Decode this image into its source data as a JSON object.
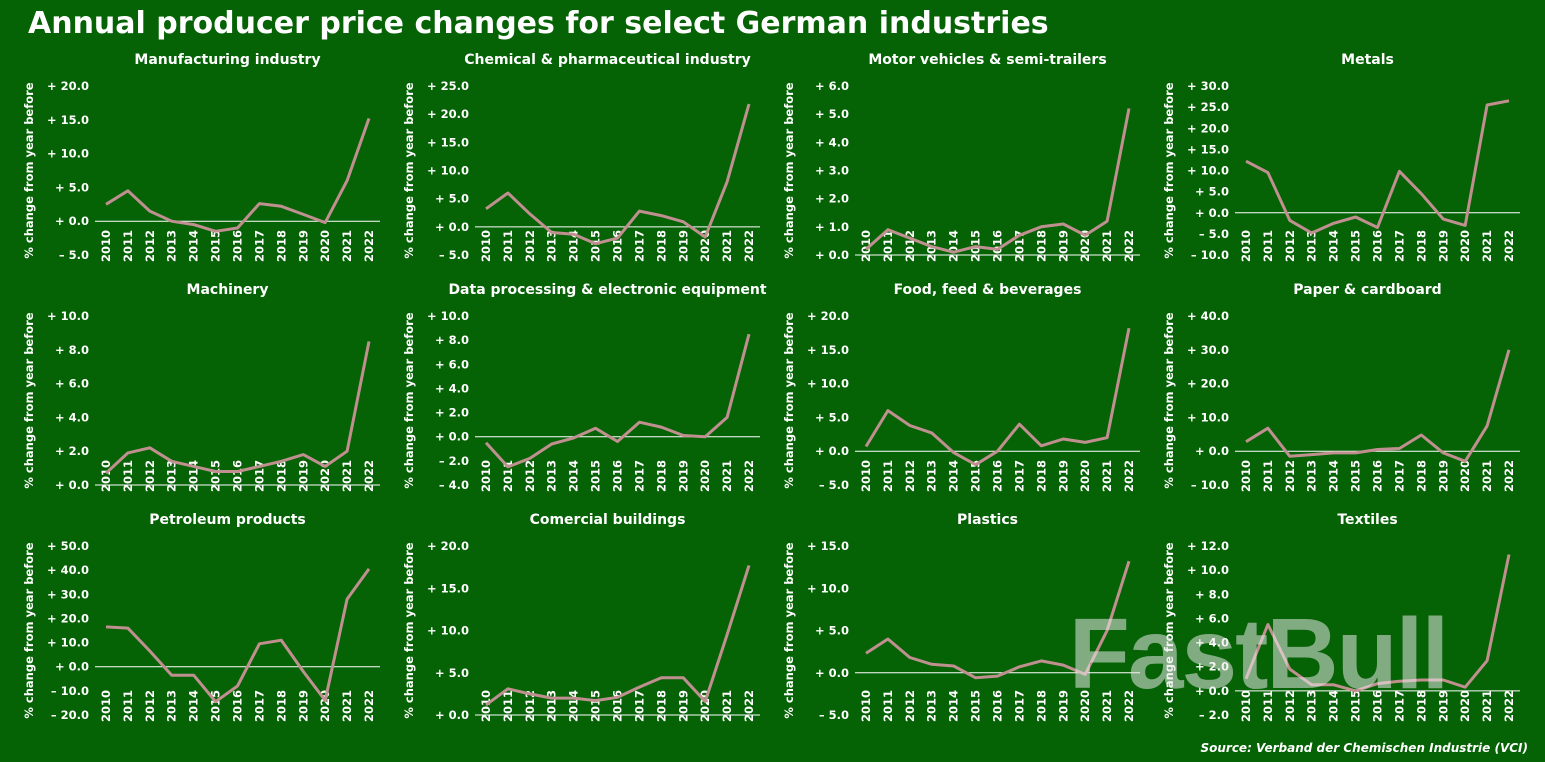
{
  "title": "Annual producer price changes for select German industries",
  "source": "Source: Verband der Chemischen Industrie (VCI)",
  "watermark": "FastBull",
  "chart_data": [
    {
      "type": "line",
      "title": "Manufacturing industry",
      "y_label": "% change from year before",
      "color": "#c09090",
      "categories": [
        "2010",
        "2011",
        "2012",
        "2013",
        "2014",
        "2015",
        "2016",
        "2017",
        "2018",
        "2019",
        "2020",
        "2021",
        "2022"
      ],
      "values": [
        2.5,
        4.5,
        1.5,
        0.0,
        -0.5,
        -1.5,
        -1.0,
        2.6,
        2.2,
        1.0,
        -0.2,
        6.0,
        15.2
      ],
      "ylim": [
        -5,
        20
      ],
      "yticks": [
        {
          "value": -5,
          "label": "– 5.0"
        },
        {
          "value": 0,
          "label": "+ 0.0"
        },
        {
          "value": 5,
          "label": "+ 5.0"
        },
        {
          "value": 10,
          "label": "+ 10.0"
        },
        {
          "value": 15,
          "label": "+ 15.0"
        },
        {
          "value": 20,
          "label": "+ 20.0"
        }
      ]
    },
    {
      "type": "line",
      "title": "Chemical & pharmaceutical industry",
      "y_label": "% change from year before",
      "color": "#c09090",
      "categories": [
        "2010",
        "2011",
        "2012",
        "2013",
        "2014",
        "2015",
        "2016",
        "2017",
        "2018",
        "2019",
        "2020",
        "2021",
        "2022"
      ],
      "values": [
        3.2,
        6.0,
        2.3,
        -1.0,
        -1.3,
        -3.0,
        -2.0,
        2.8,
        2.0,
        0.9,
        -1.8,
        8.0,
        21.8
      ],
      "ylim": [
        -5,
        25
      ],
      "yticks": [
        {
          "value": -5,
          "label": "– 5.0"
        },
        {
          "value": 0,
          "label": "+ 0.0"
        },
        {
          "value": 5,
          "label": "+ 5.0"
        },
        {
          "value": 10,
          "label": "+ 10.0"
        },
        {
          "value": 15,
          "label": "+ 15.0"
        },
        {
          "value": 20,
          "label": "+ 20.0"
        },
        {
          "value": 25,
          "label": "+ 25.0"
        }
      ]
    },
    {
      "type": "line",
      "title": "Motor vehicles & semi-trailers",
      "y_label": "% change from year before",
      "color": "#c09090",
      "categories": [
        "2010",
        "2011",
        "2012",
        "2013",
        "2014",
        "2015",
        "2016",
        "2017",
        "2018",
        "2019",
        "2020",
        "2021",
        "2022"
      ],
      "values": [
        0.2,
        0.9,
        0.6,
        0.3,
        0.1,
        0.3,
        0.2,
        0.7,
        1.0,
        1.1,
        0.7,
        1.2,
        5.2
      ],
      "ylim": [
        0,
        6
      ],
      "yticks": [
        {
          "value": 0,
          "label": "+ 0.0"
        },
        {
          "value": 1,
          "label": "+ 1.0"
        },
        {
          "value": 2,
          "label": "+ 2.0"
        },
        {
          "value": 3,
          "label": "+ 3.0"
        },
        {
          "value": 4,
          "label": "+ 4.0"
        },
        {
          "value": 5,
          "label": "+ 5.0"
        },
        {
          "value": 6,
          "label": "+ 6.0"
        }
      ]
    },
    {
      "type": "line",
      "title": "Metals",
      "y_label": "% change from year before",
      "color": "#c09090",
      "categories": [
        "2010",
        "2011",
        "2012",
        "2013",
        "2014",
        "2015",
        "2016",
        "2017",
        "2018",
        "2019",
        "2020",
        "2021",
        "2022"
      ],
      "values": [
        12.2,
        9.5,
        -1.8,
        -4.8,
        -2.5,
        -1.0,
        -3.5,
        9.8,
        4.5,
        -1.5,
        -3.0,
        25.5,
        26.5
      ],
      "ylim": [
        -10,
        30
      ],
      "yticks": [
        {
          "value": -10,
          "label": "– 10.0"
        },
        {
          "value": -5,
          "label": "– 5.0"
        },
        {
          "value": 0,
          "label": "+ 0.0"
        },
        {
          "value": 5,
          "label": "+ 5.0"
        },
        {
          "value": 10,
          "label": "+ 10.0"
        },
        {
          "value": 15,
          "label": "+ 15.0"
        },
        {
          "value": 20,
          "label": "+ 20.0"
        },
        {
          "value": 25,
          "label": "+ 25.0"
        },
        {
          "value": 30,
          "label": "+ 30.0"
        }
      ]
    },
    {
      "type": "line",
      "title": "Machinery",
      "y_label": "% change from year before",
      "color": "#c09090",
      "categories": [
        "2010",
        "2011",
        "2012",
        "2013",
        "2014",
        "2015",
        "2016",
        "2017",
        "2018",
        "2019",
        "2020",
        "2021",
        "2022"
      ],
      "values": [
        0.7,
        1.9,
        2.2,
        1.4,
        1.1,
        0.8,
        0.8,
        1.1,
        1.4,
        1.8,
        1.1,
        2.0,
        8.5
      ],
      "ylim": [
        0,
        10
      ],
      "yticks": [
        {
          "value": 0,
          "label": "+ 0.0"
        },
        {
          "value": 2,
          "label": "+ 2.0"
        },
        {
          "value": 4,
          "label": "+ 4.0"
        },
        {
          "value": 6,
          "label": "+ 6.0"
        },
        {
          "value": 8,
          "label": "+ 8.0"
        },
        {
          "value": 10,
          "label": "+ 10.0"
        }
      ]
    },
    {
      "type": "line",
      "title": "Data processing & electronic equipment",
      "y_label": "% change from year before",
      "color": "#c09090",
      "categories": [
        "2010",
        "2011",
        "2012",
        "2013",
        "2014",
        "2015",
        "2016",
        "2017",
        "2018",
        "2019",
        "2020",
        "2021",
        "2022"
      ],
      "values": [
        -0.5,
        -2.5,
        -1.8,
        -0.6,
        -0.1,
        0.7,
        -0.4,
        1.2,
        0.8,
        0.1,
        0.0,
        1.6,
        8.5
      ],
      "ylim": [
        -4,
        10
      ],
      "yticks": [
        {
          "value": -4,
          "label": "– 4.0"
        },
        {
          "value": -2,
          "label": "– 2.0"
        },
        {
          "value": 0,
          "label": "+ 0.0"
        },
        {
          "value": 2,
          "label": "+ 2.0"
        },
        {
          "value": 4,
          "label": "+ 4.0"
        },
        {
          "value": 6,
          "label": "+ 6.0"
        },
        {
          "value": 8,
          "label": "+ 8.0"
        },
        {
          "value": 10,
          "label": "+ 10.0"
        }
      ]
    },
    {
      "type": "line",
      "title": "Food, feed & beverages",
      "y_label": "% change from year before",
      "color": "#c09090",
      "categories": [
        "2010",
        "2011",
        "2012",
        "2013",
        "2014",
        "2015",
        "2016",
        "2017",
        "2018",
        "2019",
        "2020",
        "2021",
        "2022"
      ],
      "values": [
        0.7,
        6.0,
        3.8,
        2.7,
        -0.2,
        -2.0,
        0.0,
        4.0,
        0.8,
        1.8,
        1.3,
        2.0,
        18.2
      ],
      "ylim": [
        -5,
        20
      ],
      "yticks": [
        {
          "value": -5,
          "label": "– 5.0"
        },
        {
          "value": 0,
          "label": "+ 0.0"
        },
        {
          "value": 5,
          "label": "+ 5.0"
        },
        {
          "value": 10,
          "label": "+ 10.0"
        },
        {
          "value": 15,
          "label": "+ 15.0"
        },
        {
          "value": 20,
          "label": "+ 20.0"
        }
      ]
    },
    {
      "type": "line",
      "title": "Paper & cardboard",
      "y_label": "% change from year before",
      "color": "#c09090",
      "categories": [
        "2010",
        "2011",
        "2012",
        "2013",
        "2014",
        "2015",
        "2016",
        "2017",
        "2018",
        "2019",
        "2020",
        "2021",
        "2022"
      ],
      "values": [
        2.8,
        6.8,
        -1.5,
        -1.0,
        -0.5,
        -0.5,
        0.5,
        0.8,
        4.8,
        -0.5,
        -3.0,
        7.5,
        30.0
      ],
      "ylim": [
        -10,
        40
      ],
      "yticks": [
        {
          "value": -10,
          "label": "– 10.0"
        },
        {
          "value": 0,
          "label": "+ 0.0"
        },
        {
          "value": 10,
          "label": "+ 10.0"
        },
        {
          "value": 20,
          "label": "+ 20.0"
        },
        {
          "value": 30,
          "label": "+ 30.0"
        },
        {
          "value": 40,
          "label": "+ 40.0"
        }
      ]
    },
    {
      "type": "line",
      "title": "Petroleum products",
      "y_label": "% change from year before",
      "color": "#c09090",
      "categories": [
        "2010",
        "2011",
        "2012",
        "2013",
        "2014",
        "2015",
        "2016",
        "2017",
        "2018",
        "2019",
        "2020",
        "2021",
        "2022"
      ],
      "values": [
        16.5,
        16.0,
        6.5,
        -3.5,
        -3.5,
        -14.5,
        -8.0,
        9.5,
        11.0,
        -2.0,
        -14.0,
        28.0,
        40.5
      ],
      "ylim": [
        -20,
        50
      ],
      "yticks": [
        {
          "value": -20,
          "label": "– 20.0"
        },
        {
          "value": -10,
          "label": "– 10.0"
        },
        {
          "value": 0,
          "label": "+ 0.0"
        },
        {
          "value": 10,
          "label": "+ 10.0"
        },
        {
          "value": 20,
          "label": "+ 20.0"
        },
        {
          "value": 30,
          "label": "+ 30.0"
        },
        {
          "value": 40,
          "label": "+ 40.0"
        },
        {
          "value": 50,
          "label": "+ 50.0"
        }
      ]
    },
    {
      "type": "line",
      "title": "Comercial buildings",
      "y_label": "% change from year before",
      "color": "#c09090",
      "categories": [
        "2010",
        "2011",
        "2012",
        "2013",
        "2014",
        "2015",
        "2016",
        "2017",
        "2018",
        "2019",
        "2020",
        "2021",
        "2022"
      ],
      "values": [
        1.2,
        3.1,
        2.5,
        2.0,
        2.0,
        1.7,
        2.1,
        3.3,
        4.4,
        4.4,
        1.6,
        9.5,
        17.7
      ],
      "ylim": [
        0,
        20
      ],
      "yticks": [
        {
          "value": 0,
          "label": "+ 0.0"
        },
        {
          "value": 5,
          "label": "+ 5.0"
        },
        {
          "value": 10,
          "label": "+ 10.0"
        },
        {
          "value": 15,
          "label": "+ 15.0"
        },
        {
          "value": 20,
          "label": "+ 20.0"
        }
      ]
    },
    {
      "type": "line",
      "title": "Plastics",
      "y_label": "% change from year before",
      "color": "#c09090",
      "categories": [
        "2010",
        "2011",
        "2012",
        "2013",
        "2014",
        "2015",
        "2016",
        "2017",
        "2018",
        "2019",
        "2020",
        "2021",
        "2022"
      ],
      "values": [
        2.3,
        4.0,
        1.8,
        1.0,
        0.8,
        -0.6,
        -0.4,
        0.7,
        1.4,
        0.9,
        -0.2,
        5.0,
        13.2
      ],
      "ylim": [
        -5,
        15
      ],
      "yticks": [
        {
          "value": -5,
          "label": "– 5.0"
        },
        {
          "value": 0,
          "label": "+ 0.0"
        },
        {
          "value": 5,
          "label": "+ 5.0"
        },
        {
          "value": 10,
          "label": "+ 10.0"
        },
        {
          "value": 15,
          "label": "+ 15.0"
        }
      ]
    },
    {
      "type": "line",
      "title": "Textiles",
      "y_label": "% change from year before",
      "color": "#c09090",
      "categories": [
        "2010",
        "2011",
        "2012",
        "2013",
        "2014",
        "2015",
        "2016",
        "2017",
        "2018",
        "2019",
        "2020",
        "2021",
        "2022"
      ],
      "values": [
        1.0,
        5.5,
        1.8,
        0.5,
        0.5,
        0.0,
        0.6,
        0.8,
        0.9,
        0.9,
        0.3,
        2.5,
        11.3
      ],
      "ylim": [
        -2,
        12
      ],
      "yticks": [
        {
          "value": -2,
          "label": "– 2.0"
        },
        {
          "value": 0,
          "label": "+ 0.0"
        },
        {
          "value": 2,
          "label": "+ 2.0"
        },
        {
          "value": 4,
          "label": "+ 4.0"
        },
        {
          "value": 6,
          "label": "+ 6.0"
        },
        {
          "value": 8,
          "label": "+ 8.0"
        },
        {
          "value": 10,
          "label": "+ 10.0"
        },
        {
          "value": 12,
          "label": "+ 12.0"
        }
      ]
    }
  ]
}
